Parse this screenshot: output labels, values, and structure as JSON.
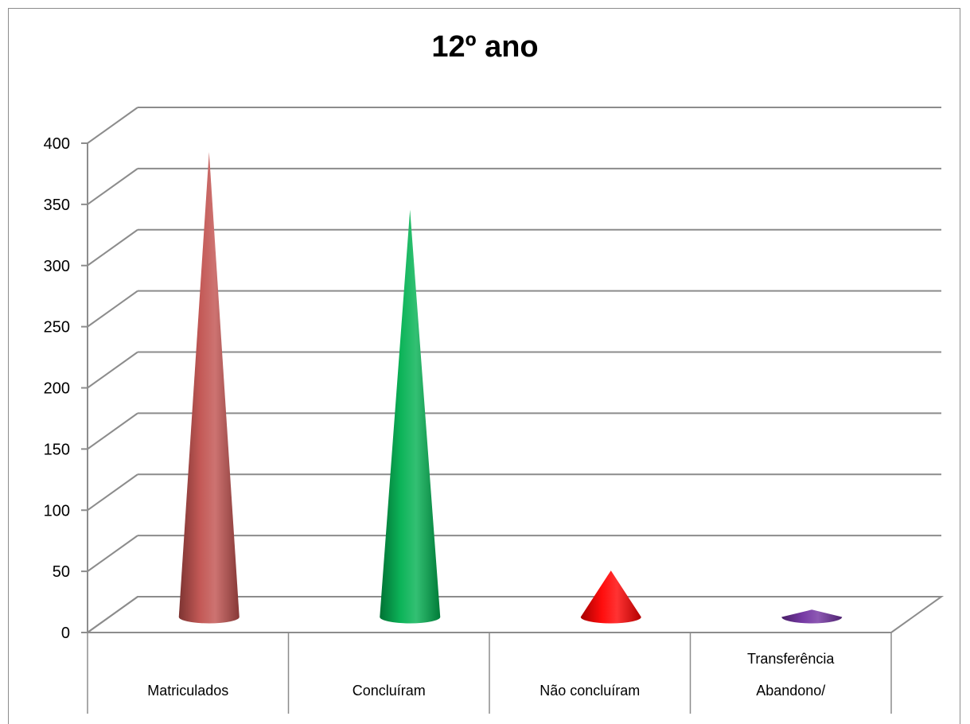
{
  "chart_data": {
    "type": "bar",
    "title": "12º ano",
    "categories": [
      "Matriculados",
      "Concluíram",
      "Não concluíram",
      "Abandono/ Transferência"
    ],
    "category_label_lines": [
      [
        "Matriculados"
      ],
      [
        "Concluíram"
      ],
      [
        "Não concluíram"
      ],
      [
        "Transferência",
        "Abandono/"
      ]
    ],
    "values": [
      380,
      333,
      38,
      6
    ],
    "colors": [
      "#c0504d",
      "#00b050",
      "#ff0000",
      "#7030a0"
    ],
    "ylim": [
      0,
      400
    ],
    "yticks": [
      "0",
      "50",
      "100",
      "150",
      "200",
      "250",
      "300",
      "350",
      "400"
    ],
    "xlabel": "",
    "ylabel": "",
    "grid": true,
    "legend": "none",
    "shape": "cone-3d"
  }
}
